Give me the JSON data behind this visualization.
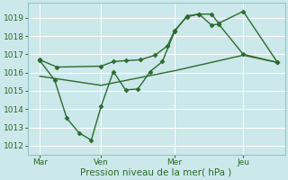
{
  "title": "Pression niveau de la mer( hPa )",
  "bg_color": "#cce8ea",
  "grid_color": "#ffffff",
  "line_color": "#2d6a2d",
  "ylim": [
    1011.5,
    1019.8
  ],
  "yticks": [
    1012,
    1013,
    1014,
    1015,
    1016,
    1017,
    1018,
    1019
  ],
  "xlim": [
    0,
    10.5
  ],
  "xtick_labels": [
    "Mar",
    "Ven",
    "Mer",
    "Jeu"
  ],
  "xtick_positions": [
    0.5,
    3.0,
    6.0,
    8.8
  ],
  "vline_positions": [
    0.5,
    3.0,
    6.0,
    8.8
  ],
  "series1_x": [
    0.5,
    1.2,
    3.0,
    3.5,
    4.0,
    4.6,
    5.2,
    5.7,
    6.0,
    6.5,
    7.0,
    7.5,
    7.8,
    8.8,
    10.2
  ],
  "series1_y": [
    1016.7,
    1016.3,
    1016.35,
    1016.6,
    1016.65,
    1016.7,
    1016.95,
    1017.45,
    1018.3,
    1019.05,
    1019.2,
    1019.2,
    1018.7,
    1019.35,
    1016.55
  ],
  "series2_x": [
    0.5,
    1.1,
    1.6,
    2.1,
    2.6,
    3.0,
    3.5,
    4.0,
    4.5,
    5.0,
    5.5,
    6.0,
    6.5,
    7.0,
    7.5,
    7.8,
    8.8,
    10.2
  ],
  "series2_y": [
    1016.65,
    1015.6,
    1013.5,
    1012.7,
    1012.3,
    1014.15,
    1016.05,
    1015.05,
    1015.1,
    1016.05,
    1016.6,
    1018.25,
    1019.1,
    1019.2,
    1018.6,
    1018.65,
    1017.0,
    1016.55
  ],
  "series3_x": [
    0.5,
    3.0,
    6.0,
    8.8,
    10.2
  ],
  "series3_y": [
    1015.8,
    1015.3,
    1016.1,
    1016.95,
    1016.55
  ]
}
